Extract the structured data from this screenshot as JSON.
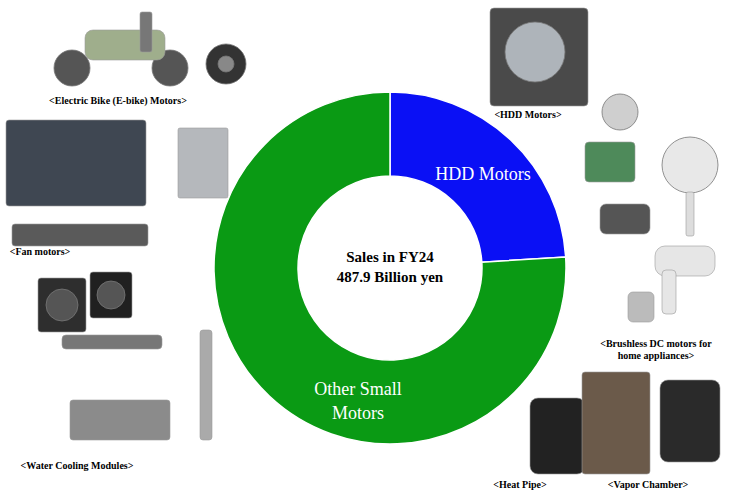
{
  "chart_data": {
    "type": "pie",
    "title": "Sales in FY24",
    "subtitle": "487.9 Billion yen",
    "categories": [
      "HDD Motors",
      "Other Small Motors"
    ],
    "values": [
      24,
      76
    ],
    "colors": [
      "#0a10f5",
      "#0a9a14"
    ],
    "annotations": [
      "<Electric Bike (E-bike) Motors>",
      "<HDD Motors>",
      "<Fan motors>",
      "<Brushless DC motors for home appliances>",
      "<Water Cooling Modules>",
      "<Heat Pipe>",
      "<Vapor Chamber>"
    ]
  }
}
